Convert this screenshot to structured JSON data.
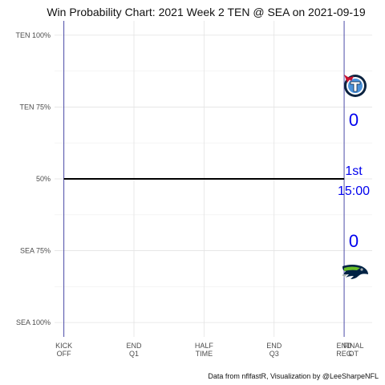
{
  "chart_data": {
    "type": "line",
    "title": "Win Probability Chart: 2021 Week 2 TEN @ SEA on 2021-09-19",
    "y_tick_labels": [
      "TEN 100%",
      "TEN 75%",
      "50%",
      "SEA 75%",
      "SEA 100%"
    ],
    "y_tick_values": [
      100,
      75,
      50,
      25,
      0
    ],
    "x_tick_labels": [
      [
        "KICK",
        "OFF"
      ],
      [
        "END",
        "Q1"
      ],
      [
        "HALF",
        "TIME"
      ],
      [
        "END",
        "Q3"
      ],
      [
        "END",
        "REG"
      ],
      [
        "FINAL",
        "OT"
      ]
    ],
    "x_tick_values": [
      0,
      15,
      30,
      45,
      60,
      62
    ],
    "xlim": [
      -2,
      66
    ],
    "ylim": [
      -5,
      105
    ],
    "series": [
      {
        "x": [
          0,
          60
        ],
        "y": [
          50,
          50
        ],
        "color": "#000000"
      }
    ],
    "boundaries": [
      0,
      60
    ],
    "boundary_color": "#3a3aa0",
    "annotations": {
      "away_score": "0",
      "home_score": "0",
      "quarter": "1st",
      "clock": "15:00",
      "color": "#0000ee"
    },
    "caption": "Data from nflfastR, Visualization by @LeeSharpeNFL",
    "grid": true,
    "logos": {
      "top": "titans-logo-icon",
      "bottom": "seahawks-logo-icon"
    }
  }
}
